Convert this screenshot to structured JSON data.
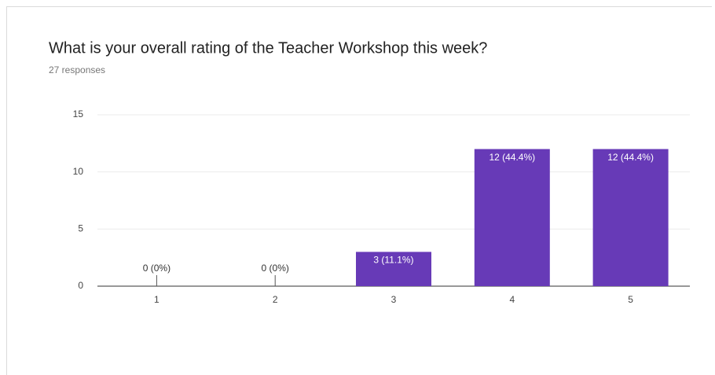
{
  "chart_data": {
    "type": "bar",
    "title": "What is your overall rating of the Teacher Workshop this week?",
    "subtitle": "27 responses",
    "categories": [
      "1",
      "2",
      "3",
      "4",
      "5"
    ],
    "values": [
      0,
      0,
      3,
      12,
      12
    ],
    "value_labels": [
      "0 (0%)",
      "0 (0%)",
      "3 (11.1%)",
      "12 (44.4%)",
      "12 (44.4%)"
    ],
    "color": "#673ab7",
    "ylim": [
      0,
      15
    ],
    "yticks": [
      0,
      5,
      10,
      15
    ],
    "grid": true
  }
}
